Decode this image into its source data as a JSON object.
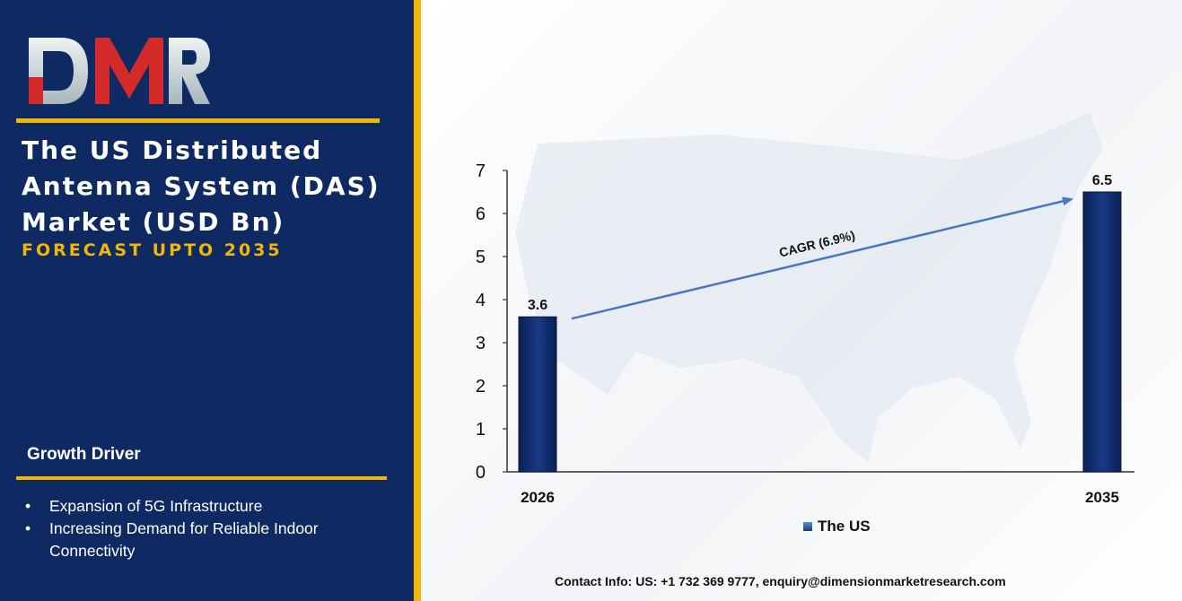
{
  "brand": {
    "logo_text": "DMR"
  },
  "header": {
    "title": "The US Distributed Antenna System (DAS) Market (USD Bn)",
    "subtitle": "FORECAST UPTO 2035"
  },
  "growth_driver": {
    "title": "Growth Driver",
    "items": [
      "Expansion of 5G Infrastructure",
      "Increasing Demand for Reliable Indoor Connectivity"
    ]
  },
  "chart_data": {
    "type": "bar",
    "categories": [
      "2026",
      "2035"
    ],
    "series": [
      {
        "name": "The US",
        "values": [
          3.6,
          6.5
        ]
      }
    ],
    "data_labels": [
      "3.6",
      "6.5"
    ],
    "yticks": [
      "0",
      "1",
      "2",
      "3",
      "4",
      "5",
      "6",
      "7"
    ],
    "ylim": [
      0,
      7
    ],
    "annotation": "CAGR (6.9%)",
    "grid": false,
    "legend_position": "bottom"
  },
  "footer": {
    "contact": "Contact Info: US: +1 732 369 9777, enquiry@dimensionmarketresearch.com"
  },
  "colors": {
    "panel": "#0f2a63",
    "accent": "#f2b705",
    "bar": "#0f2a63",
    "arrow": "#4a78c0",
    "logo_red": "#d42a2a",
    "logo_gray": "#c9d2d6"
  }
}
